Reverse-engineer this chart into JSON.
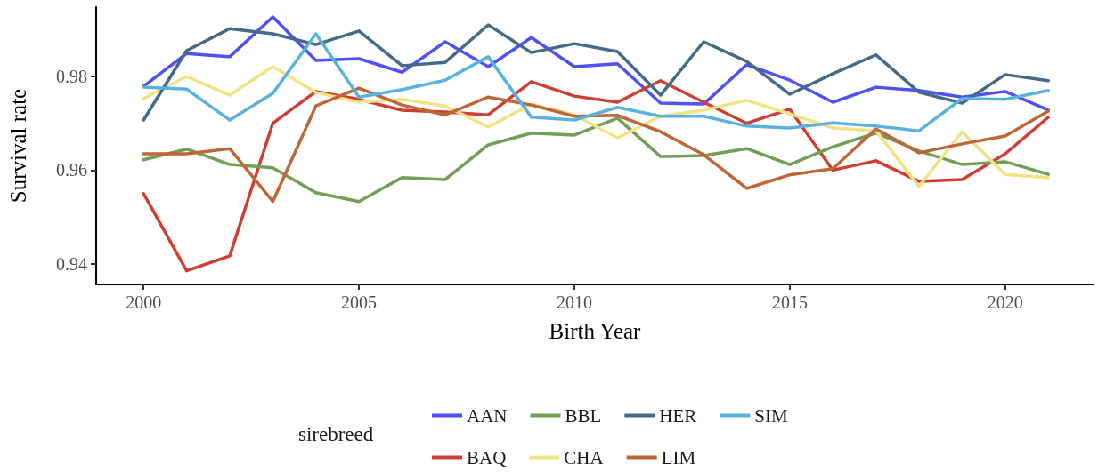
{
  "chart_data": {
    "type": "line",
    "xlabel": "Birth Year",
    "ylabel": "Survival rate",
    "legend_title": "sirebreed",
    "legend": "bottom",
    "grid": false,
    "marker": "none",
    "line_style": "solid",
    "x": [
      2000,
      2001,
      2002,
      2003,
      2004,
      2005,
      2006,
      2007,
      2008,
      2009,
      2010,
      2011,
      2012,
      2013,
      2014,
      2015,
      2016,
      2017,
      2018,
      2019,
      2020,
      2021
    ],
    "xlim": [
      1998.9,
      2022.05
    ],
    "xticks": [
      2000,
      2005,
      2010,
      2015,
      2020
    ],
    "ylim": [
      0.9356,
      0.9948
    ],
    "yticks": [
      {
        "value": 0.94,
        "label": "0.94"
      },
      {
        "value": 0.96,
        "label": "0.96"
      },
      {
        "value": 0.98,
        "label": "0.98"
      }
    ],
    "series": [
      {
        "name": "AAN",
        "color": "#5050f8",
        "values": [
          0.9779,
          0.9849,
          0.9842,
          0.9927,
          0.9834,
          0.9838,
          0.9809,
          0.9874,
          0.9821,
          0.9883,
          0.9821,
          0.9827,
          0.9743,
          0.9741,
          0.9825,
          0.9792,
          0.9745,
          0.9777,
          0.977,
          0.9756,
          0.9768,
          0.9728
        ]
      },
      {
        "name": "BAQ",
        "color": "#cf3e33",
        "values": [
          0.955,
          0.9385,
          0.9417,
          0.97,
          0.9768,
          0.9751,
          0.9728,
          0.9724,
          0.9718,
          0.9789,
          0.9758,
          0.9745,
          0.9791,
          0.9745,
          0.97,
          0.973,
          0.96,
          0.962,
          0.9576,
          0.958,
          0.9635,
          0.9713
        ]
      },
      {
        "name": "BBL",
        "color": "#729e55",
        "values": [
          0.9622,
          0.9645,
          0.9612,
          0.9605,
          0.9552,
          0.9533,
          0.9584,
          0.958,
          0.9654,
          0.9679,
          0.9675,
          0.9711,
          0.9629,
          0.9631,
          0.9646,
          0.9612,
          0.965,
          0.9679,
          0.9641,
          0.9612,
          0.9618,
          0.9591
        ]
      },
      {
        "name": "CHA",
        "color": "#f0e384",
        "values": [
          0.9753,
          0.98,
          0.976,
          0.9821,
          0.9766,
          0.9745,
          0.9751,
          0.9737,
          0.9692,
          0.9741,
          0.9718,
          0.9669,
          0.9715,
          0.9728,
          0.9749,
          0.972,
          0.969,
          0.9684,
          0.9565,
          0.9682,
          0.9591,
          0.9584
        ]
      },
      {
        "name": "HER",
        "color": "#436a86",
        "values": [
          0.9707,
          0.9855,
          0.9902,
          0.9891,
          0.9868,
          0.9897,
          0.9823,
          0.983,
          0.991,
          0.9851,
          0.987,
          0.9853,
          0.976,
          0.9874,
          0.9832,
          0.9762,
          0.9806,
          0.9846,
          0.9766,
          0.9743,
          0.9804,
          0.9791
        ]
      },
      {
        "name": "LIM",
        "color": "#bd6639",
        "values": [
          0.9635,
          0.9635,
          0.9646,
          0.9533,
          0.9737,
          0.9775,
          0.9739,
          0.9718,
          0.9756,
          0.9739,
          0.9715,
          0.9717,
          0.9682,
          0.9633,
          0.9561,
          0.959,
          0.9603,
          0.9688,
          0.9637,
          0.9656,
          0.9673,
          0.9726
        ]
      },
      {
        "name": "SIM",
        "color": "#5ab1dc",
        "values": [
          0.9777,
          0.9773,
          0.9707,
          0.9764,
          0.9891,
          0.9756,
          0.9772,
          0.9792,
          0.9842,
          0.9713,
          0.9707,
          0.9734,
          0.9715,
          0.9715,
          0.9694,
          0.969,
          0.9701,
          0.9694,
          0.9684,
          0.9753,
          0.9751,
          0.977
        ]
      }
    ]
  }
}
